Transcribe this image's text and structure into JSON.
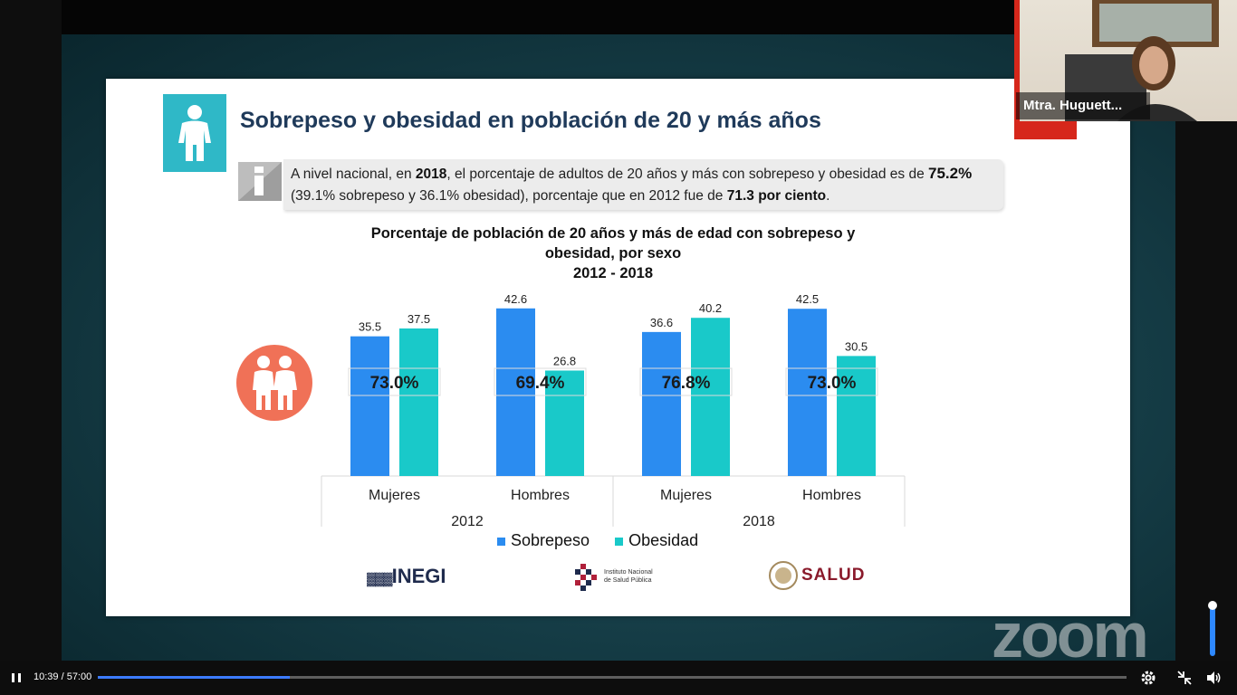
{
  "player": {
    "time": "10:39 / 57:00",
    "progress_fraction": 0.1868,
    "volume_fraction": 1.0,
    "watermark": "zoom"
  },
  "participant": {
    "name": "Mtra. Huguett..."
  },
  "slide": {
    "title": "Sobrepeso y obesidad en población de 20 y más años",
    "info": {
      "p1": "A nivel nacional, en ",
      "b1": "2018",
      "p2": ", el porcentaje de adultos de 20 años y más con sobrepeso y obesidad es de ",
      "b2": "75.2%",
      "p3": " (39.1% sobrepeso y 36.1% obesidad), porcentaje que en 2012 fue de ",
      "b3": "71.3 por ciento",
      "p4": "."
    },
    "logos": {
      "inegi": "INEGI",
      "insp": "Instituto Nacional de Salud Pública",
      "salud": "SALUD"
    }
  },
  "chart_data": {
    "type": "bar",
    "title": "Porcentaje de población de 20 años y más de edad con sobrepeso y obesidad, por sexo",
    "subtitle": "2012 - 2018",
    "categories": [
      "Mujeres",
      "Hombres",
      "Mujeres",
      "Hombres"
    ],
    "groups": [
      "2012",
      "2018"
    ],
    "series": [
      {
        "name": "Sobrepeso",
        "values": [
          35.5,
          42.6,
          36.6,
          42.5
        ],
        "color": "#2b8cf0"
      },
      {
        "name": "Obesidad",
        "values": [
          37.5,
          26.8,
          40.2,
          30.5
        ],
        "color": "#19c9c9"
      }
    ],
    "totals": [
      "73.0%",
      "69.4%",
      "76.8%",
      "73.0%"
    ],
    "ylim": [
      0,
      46
    ],
    "legend": "bottom"
  }
}
